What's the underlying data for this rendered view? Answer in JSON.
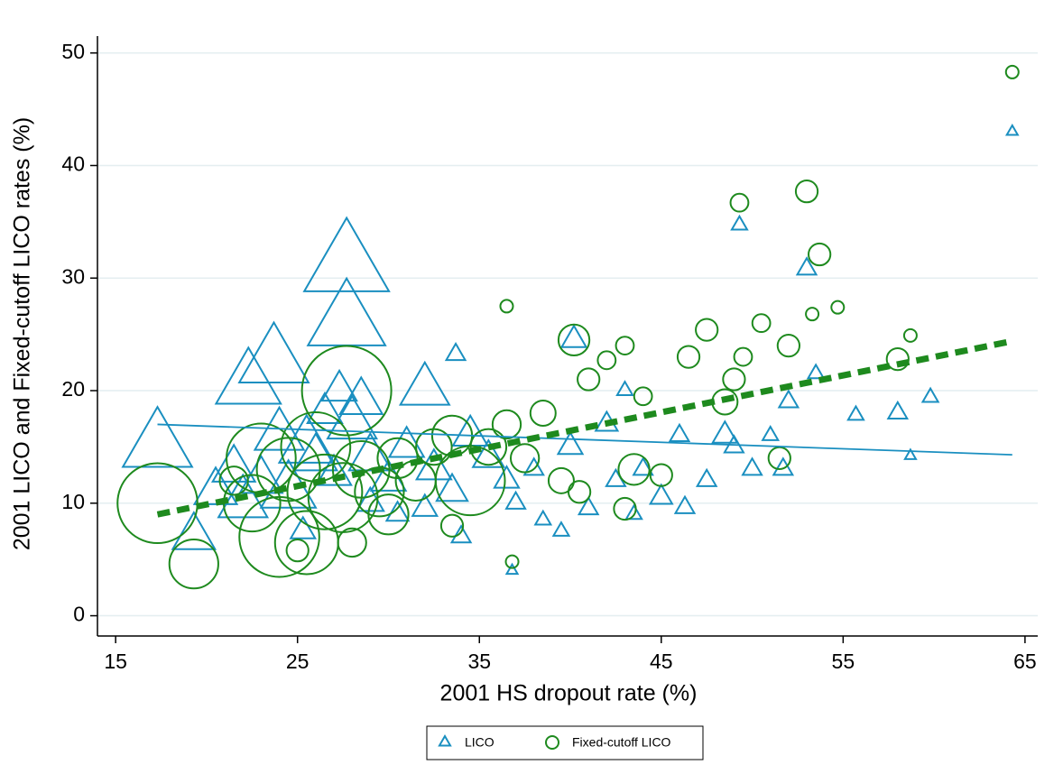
{
  "chart_data": {
    "type": "scatter",
    "x_label": "2001 HS dropout rate (%)",
    "y_label": "2001 LICO and Fixed-cutoff LICO rates (%)",
    "xlim": [
      14,
      65.7
    ],
    "ylim": [
      -1.8,
      51.5
    ],
    "xticks": [
      15,
      25,
      35,
      45,
      55,
      65
    ],
    "yticks": [
      0,
      10,
      20,
      30,
      40,
      50
    ],
    "grid": true,
    "legend": "bottom",
    "series": [
      {
        "name": "LICO",
        "color": "#1a8fc0",
        "marker": "triangle",
        "x": [
          17.3,
          19.3,
          64.3,
          49.3,
          53,
          27.7,
          27.7,
          23.7,
          22.3,
          27.3,
          32,
          33.7,
          40.2,
          24,
          25.5,
          21.5,
          22,
          24.5,
          26,
          28,
          29,
          30,
          31,
          32.5,
          33.5,
          34.5,
          35.5,
          36.5,
          37,
          38,
          38.5,
          39.5,
          40,
          41,
          42,
          42.5,
          43,
          43.5,
          44,
          45,
          46,
          46.3,
          47.5,
          48.5,
          49,
          50,
          51,
          51.7,
          52,
          53.5,
          55.7,
          58,
          58.7,
          59.8,
          36.8,
          34,
          30.5,
          32,
          29,
          28.5,
          26.5,
          23,
          20.5,
          27,
          25.3
        ],
        "values": [
          15,
          7,
          43,
          34.7,
          30.8,
          31,
          26,
          22.5,
          20.5,
          20,
          20,
          23.2,
          24.5,
          16,
          15,
          13,
          10,
          11,
          14,
          17,
          14,
          12,
          15,
          13,
          11,
          16,
          14,
          12,
          10,
          13,
          8.5,
          7.5,
          15,
          9.5,
          17,
          12,
          20,
          9,
          13,
          10.5,
          16,
          9.6,
          12,
          16,
          15,
          13,
          16,
          13,
          19,
          21.5,
          17.8,
          18,
          14.2,
          19.4,
          4,
          7,
          9,
          9.5,
          10,
          19,
          18,
          12,
          11,
          12.5,
          7.5
        ],
        "sizes": [
          40,
          15,
          1,
          2,
          3,
          60,
          50,
          40,
          35,
          10,
          20,
          3,
          5,
          20,
          25,
          15,
          20,
          25,
          15,
          20,
          15,
          10,
          10,
          10,
          8,
          10,
          8,
          5,
          3,
          3,
          2,
          2,
          5,
          3,
          4,
          3,
          2,
          2,
          3,
          4,
          3,
          3,
          3,
          5,
          3,
          3,
          2,
          3,
          3,
          2,
          2,
          3,
          1,
          2,
          1,
          3,
          4,
          5,
          6,
          15,
          10,
          15,
          15,
          10,
          5
        ],
        "fit": {
          "x": [
            17.3,
            64.3
          ],
          "values": [
            17,
            14.3
          ]
        }
      },
      {
        "name": "Fixed-cutoff LICO",
        "color": "#1e8a1e",
        "marker": "circle",
        "x": [
          17.3,
          19.3,
          64.3,
          49.3,
          53,
          53.7,
          40.2,
          27.7,
          23,
          24.5,
          22.5,
          24,
          25.5,
          26.5,
          27.5,
          26,
          28.5,
          29.5,
          30.5,
          31.5,
          32.5,
          33.5,
          34.5,
          35.5,
          36.5,
          37.5,
          38.5,
          39.5,
          40.5,
          41,
          42,
          43,
          43.5,
          44,
          45,
          46.5,
          47.5,
          48.5,
          49,
          49.5,
          50.5,
          51.5,
          52,
          53.3,
          54.7,
          58.7,
          58,
          36.8,
          36.5,
          33.5,
          30,
          25,
          21.5,
          28,
          43
        ],
        "values": [
          10,
          4.6,
          48.3,
          36.7,
          37.7,
          32.1,
          24.5,
          20,
          14,
          13,
          10,
          7,
          6.5,
          11,
          10.5,
          15,
          13,
          11,
          14,
          12,
          15,
          16,
          12,
          15,
          17,
          14,
          18,
          12,
          11,
          21,
          22.7,
          24,
          13,
          19.5,
          12.5,
          23,
          25.4,
          19,
          21,
          23,
          26,
          14,
          24,
          26.8,
          27.4,
          24.9,
          22.8,
          4.8,
          27.5,
          8,
          9,
          5.8,
          12,
          6.5,
          9.5
        ],
        "sizes": [
          40,
          15,
          1,
          2,
          3,
          3,
          6,
          50,
          30,
          25,
          20,
          40,
          25,
          35,
          30,
          30,
          20,
          15,
          10,
          10,
          8,
          10,
          30,
          8,
          5,
          5,
          4,
          4,
          3,
          3,
          2,
          2,
          6,
          2,
          3,
          3,
          3,
          4,
          3,
          2,
          2,
          3,
          3,
          1,
          1,
          1,
          3,
          1,
          1,
          3,
          10,
          3,
          5,
          5,
          3
        ],
        "fit": {
          "x": [
            17.3,
            64.3
          ],
          "values": [
            9,
            24.4
          ]
        }
      }
    ]
  }
}
